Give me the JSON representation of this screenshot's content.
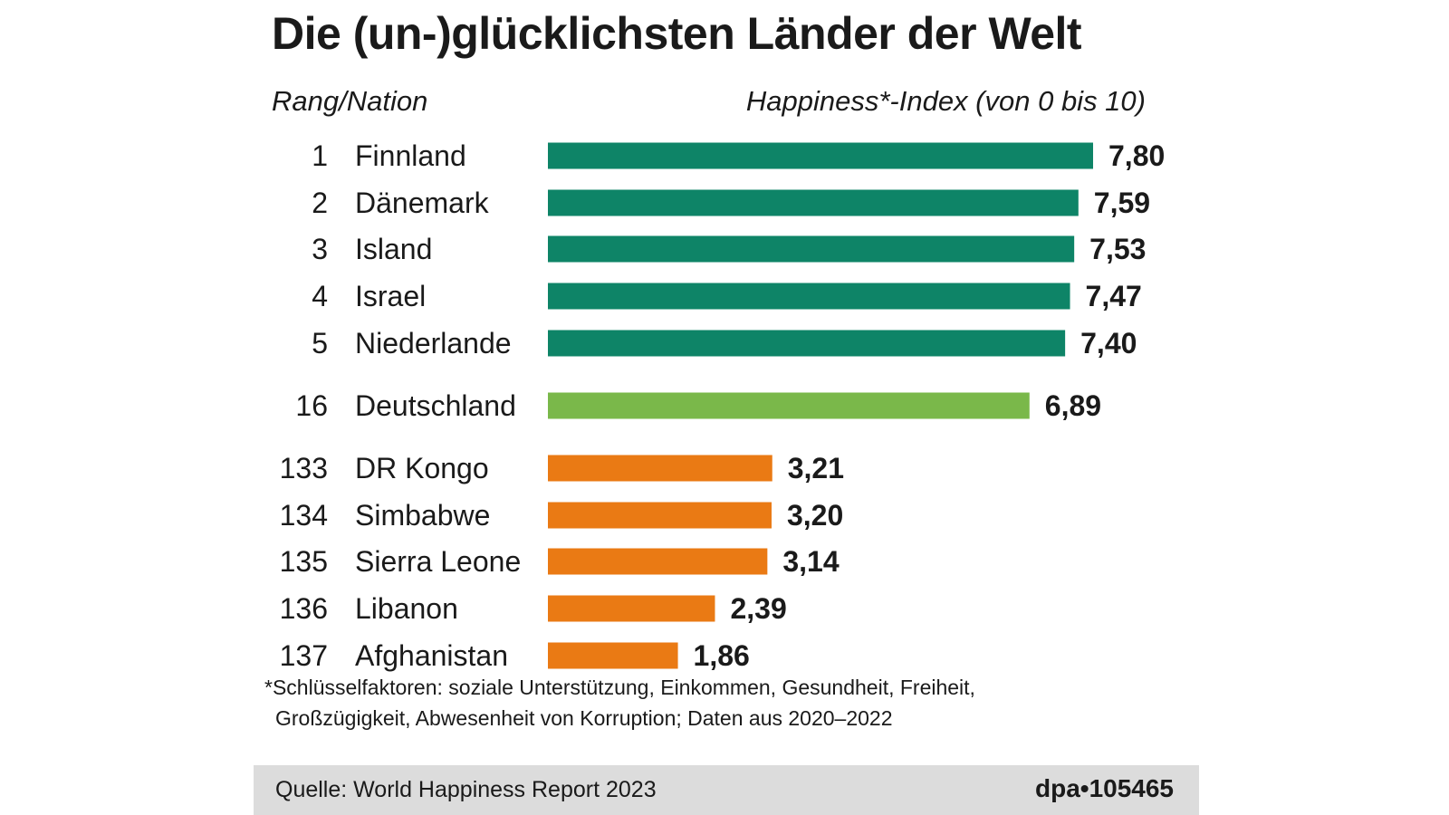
{
  "title": "Die (un-)glücklichsten Länder der Welt",
  "header": {
    "left": "Rang/Nation",
    "right": "Happiness*-Index (von 0 bis 10)"
  },
  "chart_data": {
    "type": "bar",
    "orientation": "horizontal",
    "xlim": [
      0,
      10
    ],
    "rows": [
      {
        "rank": "1",
        "nation": "Finnland",
        "value": 7.8,
        "label": "7,80",
        "group": "top"
      },
      {
        "rank": "2",
        "nation": "Dänemark",
        "value": 7.59,
        "label": "7,59",
        "group": "top"
      },
      {
        "rank": "3",
        "nation": "Island",
        "value": 7.53,
        "label": "7,53",
        "group": "top"
      },
      {
        "rank": "4",
        "nation": "Israel",
        "value": 7.47,
        "label": "7,47",
        "group": "top"
      },
      {
        "rank": "5",
        "nation": "Niederlande",
        "value": 7.4,
        "label": "7,40",
        "group": "top"
      },
      {
        "rank": "16",
        "nation": "Deutschland",
        "value": 6.89,
        "label": "6,89",
        "group": "germany"
      },
      {
        "rank": "133",
        "nation": "DR Kongo",
        "value": 3.21,
        "label": "3,21",
        "group": "bottom"
      },
      {
        "rank": "134",
        "nation": "Simbabwe",
        "value": 3.2,
        "label": "3,20",
        "group": "bottom"
      },
      {
        "rank": "135",
        "nation": "Sierra Leone",
        "value": 3.14,
        "label": "3,14",
        "group": "bottom"
      },
      {
        "rank": "136",
        "nation": "Libanon",
        "value": 2.39,
        "label": "2,39",
        "group": "bottom"
      },
      {
        "rank": "137",
        "nation": "Afghanistan",
        "value": 1.86,
        "label": "1,86",
        "group": "bottom"
      }
    ],
    "colors": {
      "top": "#0e8467",
      "germany": "#7ab84a",
      "bottom": "#ea7a14"
    }
  },
  "footnote": {
    "line1": "*Schlüsselfaktoren: soziale Unterstützung, Einkommen, Gesundheit, Freiheit,",
    "line2": "Großzügigkeit, Abwesenheit von Korruption; Daten aus 2020–2022"
  },
  "footer": {
    "source": "Quelle: World Happiness Report 2023",
    "id": "dpa•105465"
  }
}
